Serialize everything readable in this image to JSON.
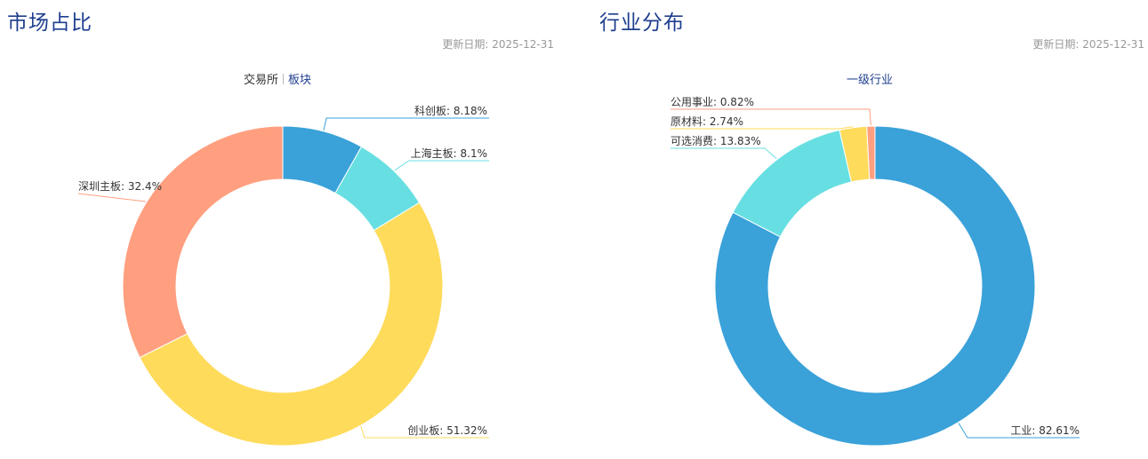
{
  "market": {
    "title": "市场占比",
    "update_label": "更新日期:",
    "update_date": "2025-12-31",
    "tabs": [
      {
        "label": "交易所",
        "active": true
      },
      {
        "label": "板块",
        "active": false
      }
    ]
  },
  "industry": {
    "title": "行业分布",
    "update_label": "更新日期:",
    "update_date": "2025-12-31",
    "subtitle": "一级行业"
  },
  "chart_data": [
    {
      "type": "pie",
      "donut": true,
      "slices": [
        {
          "label": "科创板",
          "value": 8.18,
          "display": "8.18%",
          "color": "#3aa1d9"
        },
        {
          "label": "上海主板",
          "value": 8.1,
          "display": "8.1%",
          "color": "#67dfe2"
        },
        {
          "label": "创业板",
          "value": 51.32,
          "display": "51.32%",
          "color": "#fedb5b"
        },
        {
          "label": "深圳主板",
          "value": 32.4,
          "display": "32.4%",
          "color": "#ff9f7f"
        }
      ]
    },
    {
      "type": "pie",
      "donut": true,
      "slices": [
        {
          "label": "工业",
          "value": 82.61,
          "display": "82.61%",
          "color": "#3aa1d9"
        },
        {
          "label": "可选消费",
          "value": 13.83,
          "display": "13.83%",
          "color": "#67dfe2"
        },
        {
          "label": "原材料",
          "value": 2.74,
          "display": "2.74%",
          "color": "#fedb5b"
        },
        {
          "label": "公用事业",
          "value": 0.82,
          "display": "0.82%",
          "color": "#ff9f7f"
        }
      ]
    }
  ]
}
